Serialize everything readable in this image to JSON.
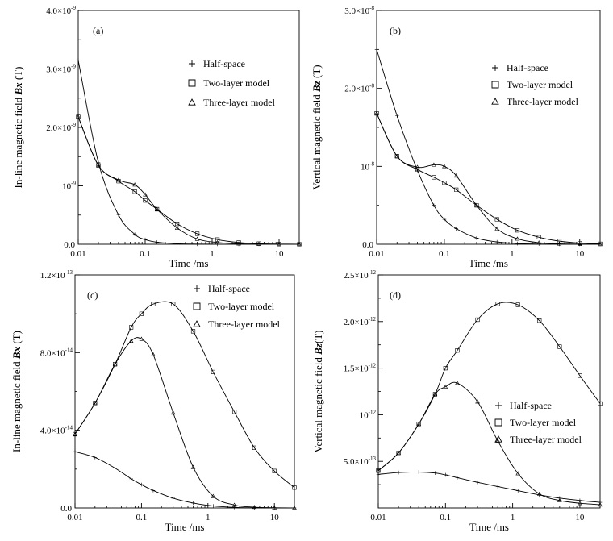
{
  "chart_data": [
    {
      "type": "line",
      "panel_label": "(a)",
      "xlabel": "Time /ms",
      "ylabel_parts": [
        "In-line magnetic field ",
        "Bx",
        " (T)"
      ],
      "x_scale": "log",
      "xlim": [
        0.01,
        20
      ],
      "x_ticks": [
        {
          "v": 0.01,
          "label": "0.01"
        },
        {
          "v": 0.1,
          "label": "0.1"
        },
        {
          "v": 1,
          "label": "1"
        },
        {
          "v": 10,
          "label": "10"
        }
      ],
      "ylim": [
        0,
        4e-09
      ],
      "y_ticks": [
        {
          "v": 1e-09,
          "base": "10",
          "exp": "-9"
        },
        {
          "v": 2e-09,
          "base": "2.0×10",
          "exp": "-9"
        },
        {
          "v": 3e-09,
          "base": "3.0×10",
          "exp": "-9"
        },
        {
          "v": 4e-09,
          "base": "4.0×10",
          "exp": "-9"
        }
      ],
      "y_zero_label": "0.0",
      "legend": [
        "Half-space",
        "Two-layer model",
        "Three-layer model"
      ],
      "x": [
        0.01,
        0.02,
        0.04,
        0.07,
        0.1,
        0.15,
        0.3,
        0.6,
        1.2,
        2.5,
        5,
        10,
        20
      ],
      "series": [
        {
          "name": "Half-space",
          "marker": "plus",
          "values": [
            3.15e-09,
            1.4e-09,
            5e-10,
            1.7e-10,
            8e-11,
            3.5e-11,
            1e-11,
            3e-12,
            1e-12,
            3e-13,
            1e-13,
            0,
            0
          ]
        },
        {
          "name": "Two-layer model",
          "marker": "square",
          "values": [
            2.18e-09,
            1.35e-09,
            1.08e-09,
            9e-10,
            7.5e-10,
            6e-10,
            3.5e-10,
            1.8e-10,
            8e-11,
            3e-11,
            1e-11,
            3e-12,
            1e-12
          ]
        },
        {
          "name": "Three-layer model",
          "marker": "triangle",
          "values": [
            2.18e-09,
            1.35e-09,
            1.1e-09,
            1.02e-09,
            8.5e-10,
            6e-10,
            2.8e-10,
            9e-11,
            3e-11,
            1e-11,
            3e-12,
            1e-12,
            0
          ]
        }
      ]
    },
    {
      "type": "line",
      "panel_label": "(b)",
      "xlabel": "Time /ms",
      "ylabel_parts": [
        "Vertical magnetic field ",
        "Bz",
        " (T)"
      ],
      "x_scale": "log",
      "xlim": [
        0.01,
        20
      ],
      "x_ticks": [
        {
          "v": 0.01,
          "label": "0.01"
        },
        {
          "v": 0.1,
          "label": "0.1"
        },
        {
          "v": 1,
          "label": "1"
        },
        {
          "v": 10,
          "label": "10"
        }
      ],
      "ylim": [
        0,
        3e-08
      ],
      "y_ticks": [
        {
          "v": 1e-08,
          "base": "10",
          "exp": "-8"
        },
        {
          "v": 2e-08,
          "base": "2.0×10",
          "exp": "-8"
        },
        {
          "v": 3e-08,
          "base": "3.0×10",
          "exp": "-8"
        }
      ],
      "y_zero_label": "0.0",
      "legend": [
        "Half-space",
        "Two-layer model",
        "Three-layer model"
      ],
      "x": [
        0.01,
        0.02,
        0.04,
        0.07,
        0.1,
        0.15,
        0.3,
        0.6,
        1.2,
        2.5,
        5,
        10,
        20
      ],
      "series": [
        {
          "name": "Half-space",
          "marker": "plus",
          "values": [
            2.5e-08,
            1.65e-08,
            9.5e-09,
            5e-09,
            3.2e-09,
            2e-09,
            8e-10,
            3e-10,
            1e-10,
            3e-11,
            1e-11,
            0,
            0
          ]
        },
        {
          "name": "Two-layer model",
          "marker": "square",
          "values": [
            1.68e-08,
            1.13e-08,
            9.6e-09,
            8.6e-09,
            7.9e-09,
            7e-09,
            5e-09,
            3.2e-09,
            1.8e-09,
            9e-10,
            4e-10,
            1.5e-10,
            5e-11
          ]
        },
        {
          "name": "Three-layer model",
          "marker": "triangle",
          "values": [
            1.68e-08,
            1.13e-08,
            9.9e-09,
            1.02e-08,
            1e-08,
            8.8e-09,
            5e-09,
            2e-09,
            7e-10,
            2e-10,
            6e-11,
            2e-11,
            0
          ]
        }
      ]
    },
    {
      "type": "line",
      "panel_label": "(c)",
      "xlabel": "Time /ms",
      "ylabel_parts": [
        "In-line magnetic field ",
        "Bx",
        " (T)"
      ],
      "x_scale": "log",
      "xlim": [
        0.01,
        20
      ],
      "x_ticks": [
        {
          "v": 0.01,
          "label": "0.01"
        },
        {
          "v": 0.1,
          "label": "0.1"
        },
        {
          "v": 1,
          "label": "1"
        },
        {
          "v": 10,
          "label": "10"
        }
      ],
      "ylim": [
        0,
        1.2e-13
      ],
      "y_ticks": [
        {
          "v": 4e-14,
          "base": "4.0×10",
          "exp": "-14"
        },
        {
          "v": 8e-14,
          "base": "8.0×10",
          "exp": "-14"
        },
        {
          "v": 1.2e-13,
          "base": "1.2×10",
          "exp": "-13"
        }
      ],
      "y_zero_label": "0.0",
      "legend": [
        "Half-space",
        "Two-layer model",
        "Three-layer model"
      ],
      "x": [
        0.01,
        0.02,
        0.04,
        0.07,
        0.1,
        0.15,
        0.3,
        0.6,
        1.2,
        2.5,
        5,
        10,
        20
      ],
      "series": [
        {
          "name": "Half-space",
          "marker": "plus",
          "values": [
            2.9e-14,
            2.6e-14,
            2.05e-14,
            1.5e-14,
            1.2e-14,
            9e-15,
            5e-15,
            2.5e-15,
            1e-15,
            3e-16,
            1e-16,
            0,
            0
          ]
        },
        {
          "name": "Two-layer model",
          "marker": "square",
          "values": [
            3.8e-14,
            5.4e-14,
            7.4e-14,
            9.3e-14,
            1e-13,
            1.05e-13,
            1.05e-13,
            9.1e-14,
            7e-14,
            4.95e-14,
            3.1e-14,
            1.9e-14,
            1.05e-14
          ]
        },
        {
          "name": "Three-layer model",
          "marker": "triangle",
          "values": [
            3.8e-14,
            5.4e-14,
            7.4e-14,
            8.6e-14,
            8.7e-14,
            7.9e-14,
            4.9e-14,
            2.1e-14,
            6e-15,
            1.5e-15,
            4e-16,
            1e-16,
            0
          ]
        }
      ]
    },
    {
      "type": "line",
      "panel_label": "(d)",
      "xlabel": "Time /ms",
      "ylabel_parts": [
        "Vertical magnetic field ",
        "Bz",
        "(T)"
      ],
      "x_scale": "log",
      "xlim": [
        0.01,
        20
      ],
      "x_ticks": [
        {
          "v": 0.01,
          "label": "0.01"
        },
        {
          "v": 0.1,
          "label": "0.1"
        },
        {
          "v": 1,
          "label": "1"
        },
        {
          "v": 10,
          "label": "10"
        }
      ],
      "ylim": [
        0,
        2.5e-12
      ],
      "y_ticks": [
        {
          "v": 5e-13,
          "base": "5.0×10",
          "exp": "-13"
        },
        {
          "v": 1e-12,
          "base": "10",
          "exp": "-12"
        },
        {
          "v": 1.5e-12,
          "base": "1.5×10",
          "exp": "-12"
        },
        {
          "v": 2e-12,
          "base": "2.0×10",
          "exp": "-12"
        },
        {
          "v": 2.5e-12,
          "base": "2.5×10",
          "exp": "-12"
        }
      ],
      "y_zero_label": "",
      "legend": [
        "Half-space",
        "Two-layer model",
        "Three-layer model"
      ],
      "x": [
        0.01,
        0.02,
        0.04,
        0.07,
        0.1,
        0.15,
        0.3,
        0.6,
        1.2,
        2.5,
        5,
        10,
        20
      ],
      "series": [
        {
          "name": "Half-space",
          "marker": "plus",
          "values": [
            3.6e-13,
            3.8e-13,
            3.85e-13,
            3.75e-13,
            3.55e-13,
            3.25e-13,
            2.75e-13,
            2.3e-13,
            1.85e-13,
            1.4e-13,
            1.05e-13,
            8e-14,
            6e-14
          ]
        },
        {
          "name": "Two-layer model",
          "marker": "square",
          "values": [
            4e-13,
            5.9e-13,
            9e-13,
            1.22e-12,
            1.5e-12,
            1.69e-12,
            2.02e-12,
            2.19e-12,
            2.18e-12,
            2.01e-12,
            1.73e-12,
            1.42e-12,
            1.12e-12
          ]
        },
        {
          "name": "Three-layer model",
          "marker": "triangle",
          "values": [
            4e-13,
            5.9e-13,
            9e-13,
            1.22e-12,
            1.3e-12,
            1.34e-12,
            1.14e-12,
            7.2e-13,
            3.7e-13,
            1.5e-13,
            8e-14,
            5e-14,
            3.5e-14
          ]
        }
      ]
    }
  ]
}
